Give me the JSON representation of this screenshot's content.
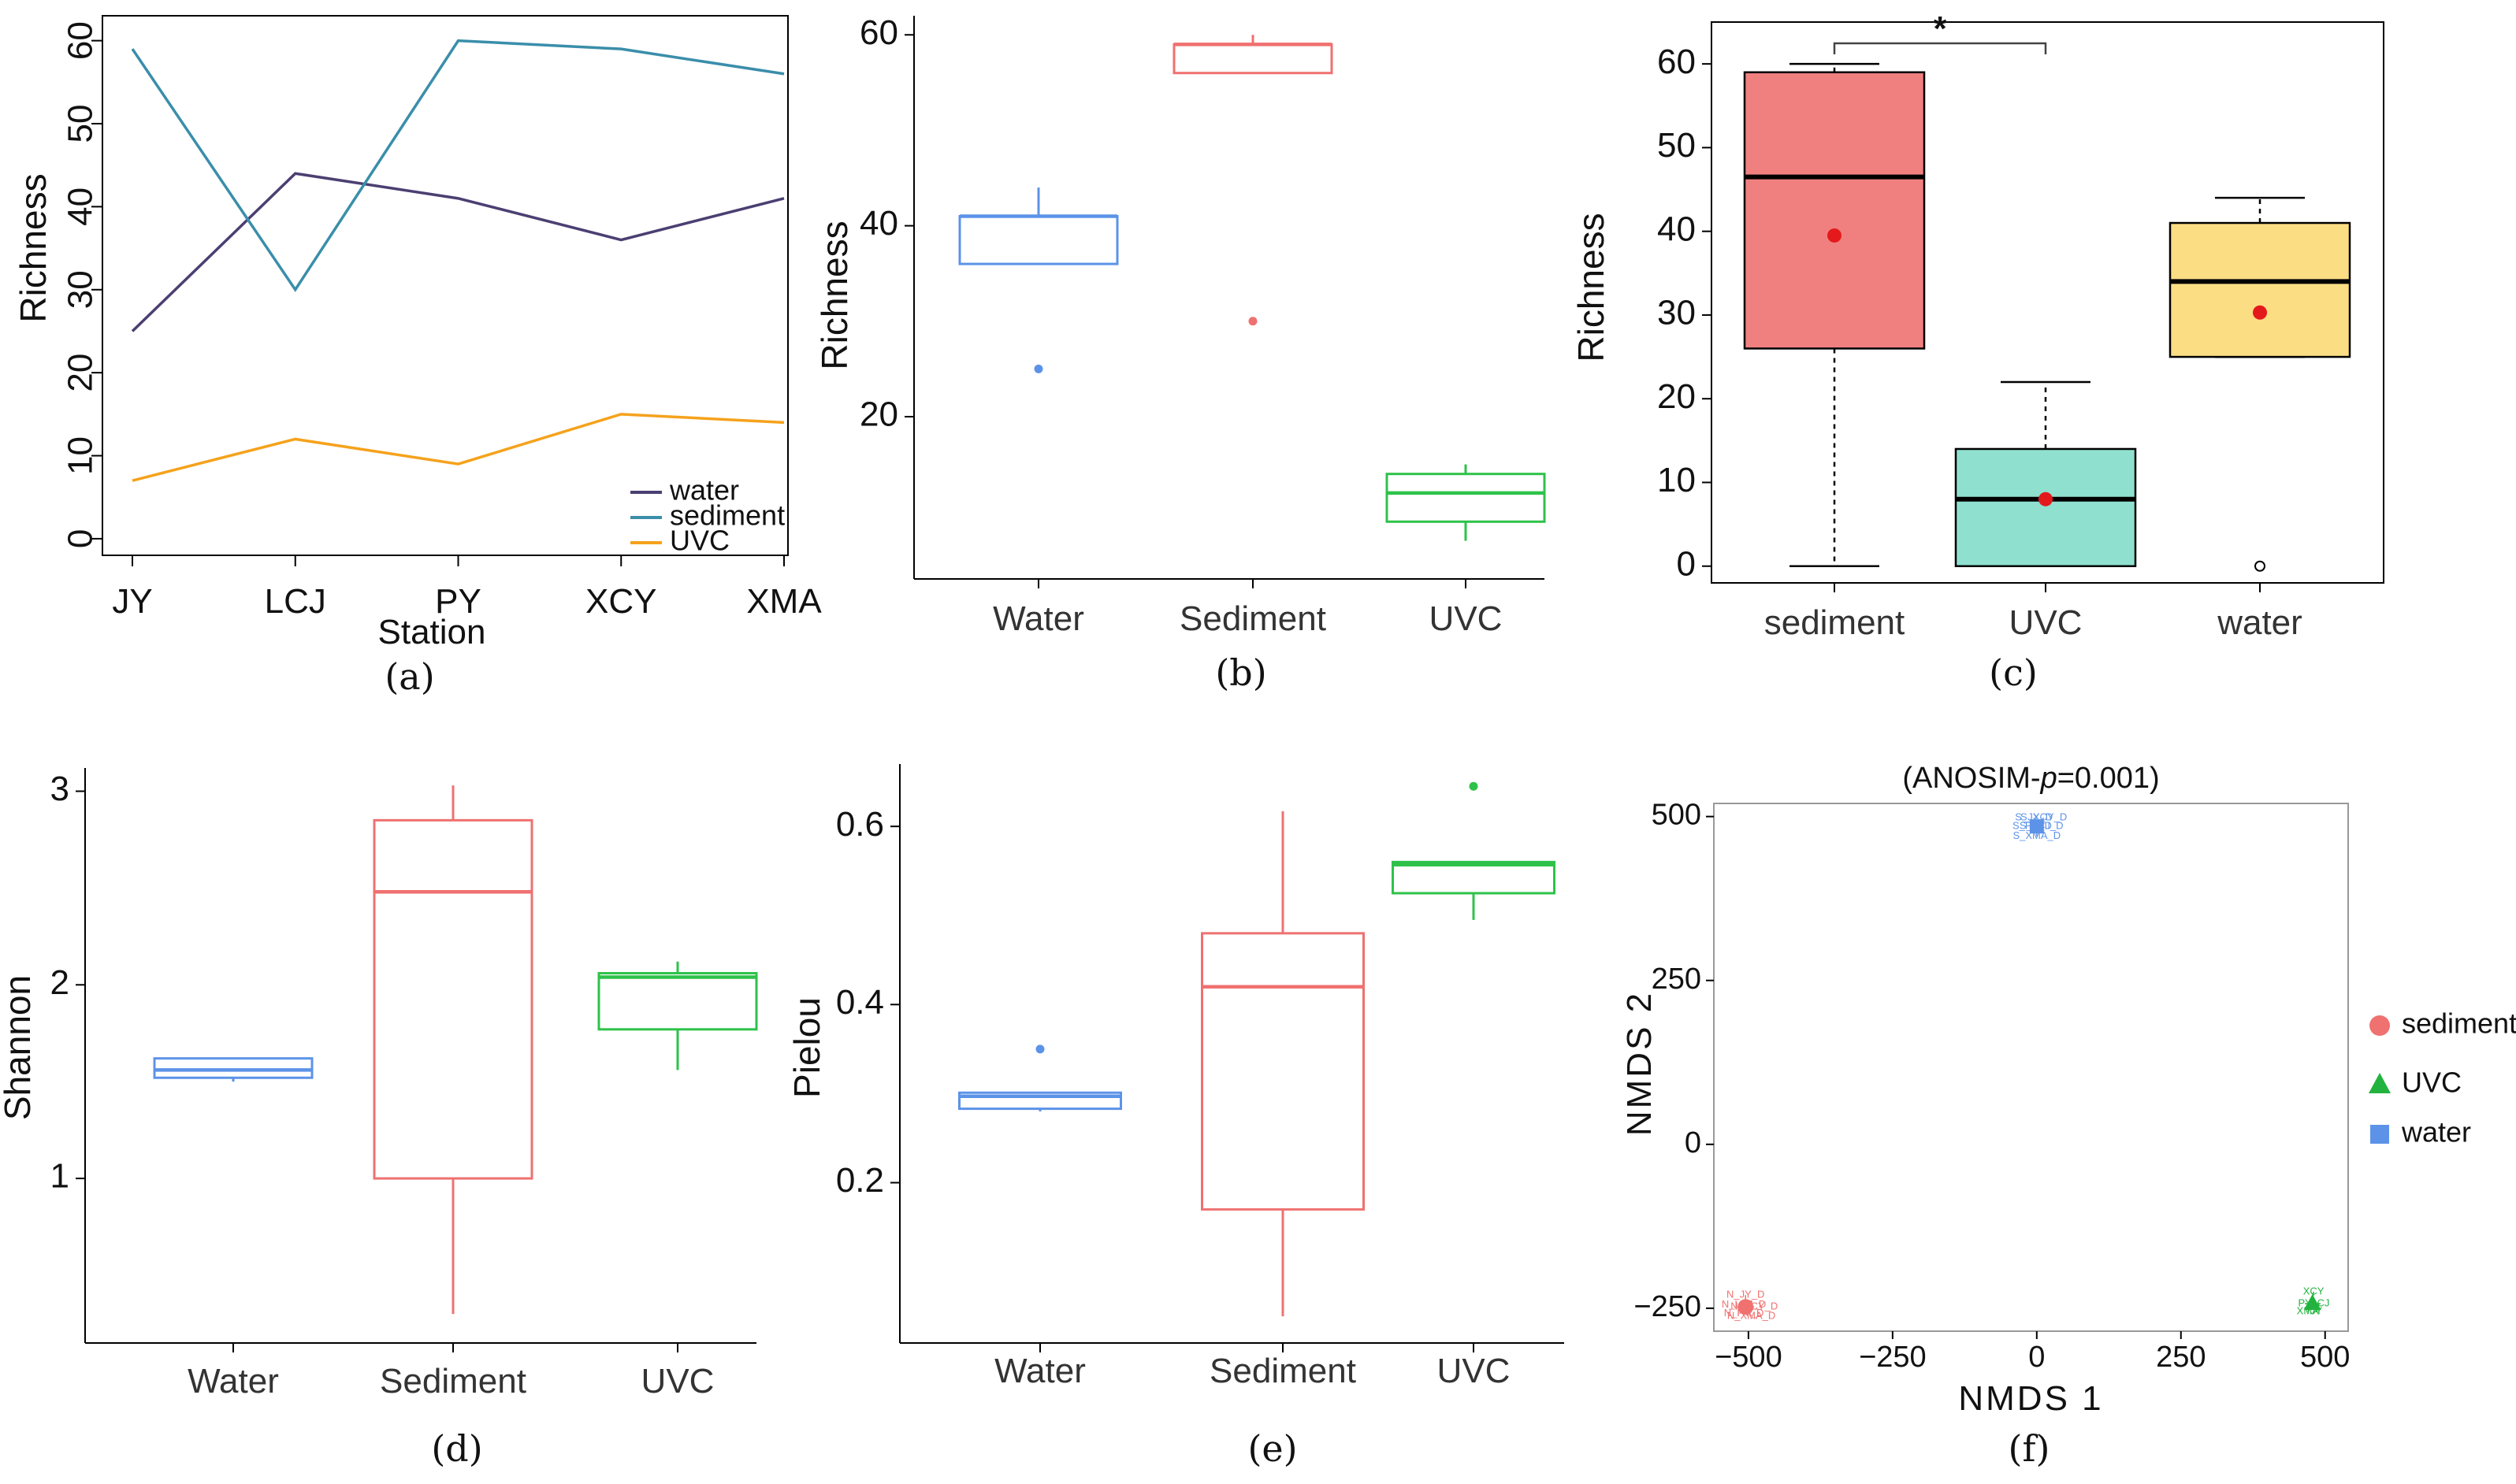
{
  "chart_data": [
    {
      "panel": "(a)",
      "type": "line",
      "xlabel": "Station",
      "ylabel": "Richness",
      "categories": [
        "JY",
        "LCJ",
        "PY",
        "XCY",
        "XMA"
      ],
      "yticks": [
        "0",
        "10",
        "20",
        "30",
        "40",
        "50",
        "60"
      ],
      "ylim": [
        -2,
        63
      ],
      "legend_position": "bottom-right",
      "series": [
        {
          "name": "water",
          "color": "#4b3f72",
          "values": [
            25,
            44,
            41,
            36,
            41
          ]
        },
        {
          "name": "sediment",
          "color": "#3a8eaa",
          "values": [
            59,
            30,
            60,
            59,
            56
          ]
        },
        {
          "name": "UVC",
          "color": "#f5a21c",
          "values": [
            7,
            12,
            9,
            15,
            14
          ]
        }
      ]
    },
    {
      "panel": "(b)",
      "type": "box",
      "xlabel": "",
      "ylabel": "Richness",
      "categories": [
        "Water",
        "Sediment",
        "UVC"
      ],
      "yticks": [
        "20",
        "40",
        "60"
      ],
      "ylim": [
        3,
        62
      ],
      "boxes": [
        {
          "name": "Water",
          "color": "#5c93e8",
          "whisker_low": 36,
          "q1": 36,
          "median": 41,
          "q3": 41,
          "whisker_high": 44,
          "outliers": [
            25
          ]
        },
        {
          "name": "Sediment",
          "color": "#ef7170",
          "whisker_low": 56,
          "q1": 56,
          "median": 59,
          "q3": 59,
          "whisker_high": 60,
          "outliers": [
            30
          ]
        },
        {
          "name": "UVC",
          "color": "#2ec24a",
          "whisker_low": 7,
          "q1": 9,
          "median": 12,
          "q3": 14,
          "whisker_high": 15,
          "outliers": []
        }
      ]
    },
    {
      "panel": "(c)",
      "type": "box",
      "xlabel": "",
      "ylabel": "Richness",
      "categories": [
        "sediment",
        "UVC",
        "water"
      ],
      "yticks": [
        "0",
        "10",
        "20",
        "30",
        "40",
        "50",
        "60"
      ],
      "ylim": [
        -2,
        65
      ],
      "significance": "*",
      "boxes": [
        {
          "name": "sediment",
          "color": "#f08080",
          "whisker_low": 0,
          "q1": 26,
          "median": 46.5,
          "q3": 59,
          "whisker_high": 60,
          "mean": 39.5,
          "outliers": []
        },
        {
          "name": "UVC",
          "color": "#8fe0cf",
          "whisker_low": 0,
          "q1": 0,
          "median": 8,
          "q3": 14,
          "whisker_high": 22,
          "mean": 8,
          "outliers": []
        },
        {
          "name": "water",
          "color": "#fbdd84",
          "whisker_low": 25,
          "q1": 25,
          "median": 34,
          "q3": 41,
          "whisker_high": 44,
          "mean": 30.3,
          "outliers": [
            0
          ]
        }
      ]
    },
    {
      "panel": "(d)",
      "type": "box",
      "xlabel": "",
      "ylabel": "Shannon",
      "categories": [
        "Water",
        "Sediment",
        "UVC"
      ],
      "yticks": [
        "1",
        "2",
        "3"
      ],
      "ylim": [
        0.15,
        3.12
      ],
      "boxes": [
        {
          "name": "Water",
          "color": "#5c93e8",
          "whisker_low": 1.5,
          "q1": 1.52,
          "median": 1.56,
          "q3": 1.62,
          "whisker_high": 1.62,
          "outliers": []
        },
        {
          "name": "Sediment",
          "color": "#ef7170",
          "whisker_low": 0.3,
          "q1": 1.0,
          "median": 2.48,
          "q3": 2.85,
          "whisker_high": 3.03,
          "outliers": []
        },
        {
          "name": "UVC",
          "color": "#2ec24a",
          "whisker_low": 1.56,
          "q1": 1.77,
          "median": 2.04,
          "q3": 2.06,
          "whisker_high": 2.12,
          "outliers": []
        }
      ]
    },
    {
      "panel": "(e)",
      "type": "box",
      "xlabel": "",
      "ylabel": "Pielou",
      "categories": [
        "Water",
        "Sediment",
        "UVC"
      ],
      "yticks": [
        "0.2",
        "0.4",
        "0.6"
      ],
      "ylim": [
        0.02,
        0.67
      ],
      "boxes": [
        {
          "name": "Water",
          "color": "#5c93e8",
          "whisker_low": 0.28,
          "q1": 0.283,
          "median": 0.297,
          "q3": 0.301,
          "whisker_high": 0.301,
          "outliers": [
            0.35
          ]
        },
        {
          "name": "Sediment",
          "color": "#ef7170",
          "whisker_low": 0.05,
          "q1": 0.17,
          "median": 0.42,
          "q3": 0.48,
          "whisker_high": 0.617,
          "outliers": []
        },
        {
          "name": "UVC",
          "color": "#2ec24a",
          "whisker_low": 0.495,
          "q1": 0.525,
          "median": 0.557,
          "q3": 0.56,
          "whisker_high": 0.56,
          "outliers": [
            0.645
          ]
        }
      ]
    },
    {
      "panel": "(f)",
      "type": "scatter",
      "title": "(ANOSIM-p=0.001)",
      "title_parts": [
        "(ANOSIM-",
        "p",
        "=0.001)"
      ],
      "xlabel": "NMDS 1",
      "ylabel": "NMDS 2",
      "xticks": [
        -500,
        -250,
        0,
        250,
        500
      ],
      "xtick_labels": [
        "−500",
        "−250",
        "0",
        "250",
        "500"
      ],
      "yticks": [
        -250,
        0,
        250,
        500
      ],
      "ytick_labels": [
        "−250",
        "0",
        "250",
        "500"
      ],
      "xlim": [
        -560,
        540
      ],
      "ylim": [
        -285,
        520
      ],
      "legend_position": "right",
      "groups": [
        {
          "name": "sediment",
          "color": "#ef7170",
          "centroid": [
            -505,
            -248
          ],
          "points": [
            {
              "label": "N_JY_D",
              "x": -505,
              "y": -230
            },
            {
              "label": "N_LCJ_D",
              "x": -508,
              "y": -245
            },
            {
              "label": "N_XCY_D",
              "x": -490,
              "y": -248
            },
            {
              "label": "N_PY_D",
              "x": -508,
              "y": -258
            },
            {
              "label": "N_XMA_D",
              "x": -495,
              "y": -262
            }
          ]
        },
        {
          "name": "UVC",
          "color": "#22b33f",
          "centroid": [
            478,
            -243
          ],
          "points": [
            {
              "label": "XCY",
              "x": 480,
              "y": -225
            },
            {
              "label": "PY",
              "x": 465,
              "y": -243
            },
            {
              "label": "LCJ",
              "x": 492,
              "y": -243
            },
            {
              "label": "XMA",
              "x": 470,
              "y": -255
            },
            {
              "label": "JY",
              "x": 485,
              "y": -255
            }
          ]
        },
        {
          "name": "water",
          "color": "#5c93e8",
          "centroid": [
            0,
            485
          ],
          "points": [
            {
              "label": "S_JY_D",
              "x": -5,
              "y": 498
            },
            {
              "label": "S_XCY_D",
              "x": 12,
              "y": 498
            },
            {
              "label": "S_PY_D",
              "x": -8,
              "y": 485
            },
            {
              "label": "S_LCJ_D",
              "x": 8,
              "y": 485
            },
            {
              "label": "S_XMA_D",
              "x": 0,
              "y": 470
            }
          ]
        }
      ]
    }
  ]
}
